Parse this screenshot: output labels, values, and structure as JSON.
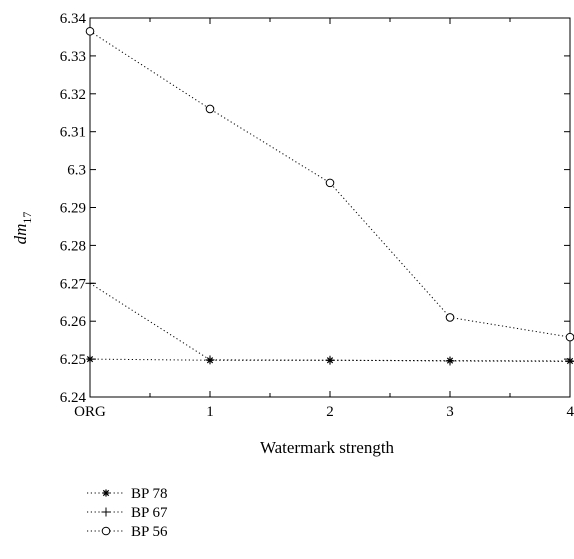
{
  "chart_data": {
    "type": "line",
    "title": "",
    "xlabel": "Watermark strength",
    "ylabel_main": "dm",
    "ylabel_sub": "17",
    "categories": [
      "ORG",
      "1",
      "2",
      "3",
      "4"
    ],
    "ylim": [
      6.24,
      6.34
    ],
    "yticks": [
      "6.24",
      "6.25",
      "6.26",
      "6.27",
      "6.28",
      "6.29",
      "6.3",
      "6.31",
      "6.32",
      "6.33",
      "6.34"
    ],
    "legend_position": "bottom-left",
    "grid": false,
    "series": [
      {
        "name": "BP 78",
        "marker": "asterisk",
        "values": [
          6.25,
          6.2497,
          6.2497,
          6.2496,
          6.2495
        ]
      },
      {
        "name": "BP 67",
        "marker": "plus",
        "values": [
          6.27,
          6.2498,
          6.2497,
          6.2495,
          6.2494
        ]
      },
      {
        "name": "BP 56",
        "marker": "circle",
        "values": [
          6.3365,
          6.316,
          6.2965,
          6.261,
          6.2558
        ]
      }
    ]
  }
}
